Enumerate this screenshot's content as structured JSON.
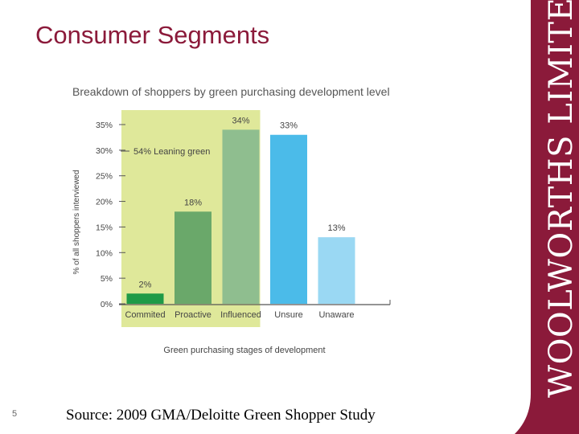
{
  "slide": {
    "title": "Consumer Segments",
    "number": "5",
    "source": "Source: 2009 GMA/Deloitte Green Shopper Study",
    "brand_text": "WOOLWORTHS LIMITED",
    "brand_color": "#8b1a3a"
  },
  "chart_data": {
    "type": "bar",
    "title": "Breakdown of shoppers by green purchasing development level",
    "xlabel": "Green purchasing stages of development",
    "ylabel": "% of all shoppers interviewed",
    "categories": [
      "Commited",
      "Proactive",
      "Influenced",
      "Unsure",
      "Unaware"
    ],
    "values": [
      2,
      18,
      34,
      33,
      13
    ],
    "value_labels": [
      "2%",
      "18%",
      "34%",
      "33%",
      "13%"
    ],
    "bar_colors": [
      "#1f9a47",
      "#6aa86a",
      "#8fbe8f",
      "#4bbbe9",
      "#9ad8f3"
    ],
    "y_ticks": [
      0,
      5,
      10,
      15,
      20,
      25,
      30,
      35
    ],
    "y_tick_labels": [
      "0%",
      "5%",
      "10%",
      "15%",
      "20%",
      "25%",
      "30%",
      "35%"
    ],
    "ylim": [
      0,
      35
    ],
    "highlight": {
      "label": "54% Leaning green",
      "categories": [
        "Commited",
        "Proactive",
        "Influenced"
      ],
      "color": "#dfe89a"
    },
    "grid": false
  }
}
